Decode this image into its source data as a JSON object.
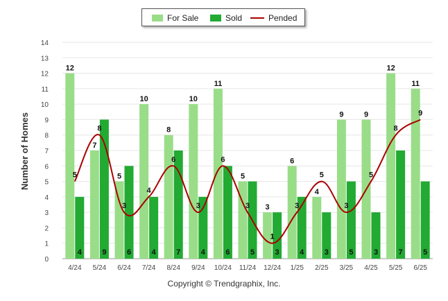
{
  "chart_data": {
    "type": "bar",
    "categories": [
      "4/24",
      "5/24",
      "6/24",
      "7/24",
      "8/24",
      "9/24",
      "10/24",
      "11/24",
      "12/24",
      "1/25",
      "2/25",
      "3/25",
      "4/25",
      "5/25",
      "6/25"
    ],
    "series": [
      {
        "name": "For Sale",
        "type": "bar",
        "color": "#99dd88",
        "values": [
          12,
          7,
          5,
          10,
          8,
          10,
          11,
          5,
          3,
          6,
          4,
          9,
          9,
          12,
          11
        ]
      },
      {
        "name": "Sold",
        "type": "bar",
        "color": "#22aa33",
        "values": [
          4,
          9,
          6,
          4,
          7,
          4,
          6,
          5,
          3,
          4,
          3,
          5,
          3,
          7,
          5
        ]
      },
      {
        "name": "Pended",
        "type": "line",
        "color": "#aa0000",
        "values": [
          5,
          8,
          3,
          4,
          6,
          3,
          6,
          3,
          1,
          3,
          5,
          3,
          5,
          8,
          9
        ]
      }
    ],
    "ylabel": "Number of Homes",
    "xlabel": "",
    "ylim": [
      0,
      14
    ],
    "yticks": [
      0,
      1,
      2,
      3,
      4,
      5,
      6,
      7,
      8,
      9,
      10,
      11,
      12,
      13,
      14
    ],
    "grid": true,
    "legend_position": "top-center"
  },
  "legend": {
    "for_sale": "For Sale",
    "sold": "Sold",
    "pended": "Pended",
    "for_sale_color": "#99dd88",
    "sold_color": "#22aa33",
    "pended_color": "#aa0000"
  },
  "footer": {
    "copyright": "Copyright © Trendgraphix, Inc."
  }
}
